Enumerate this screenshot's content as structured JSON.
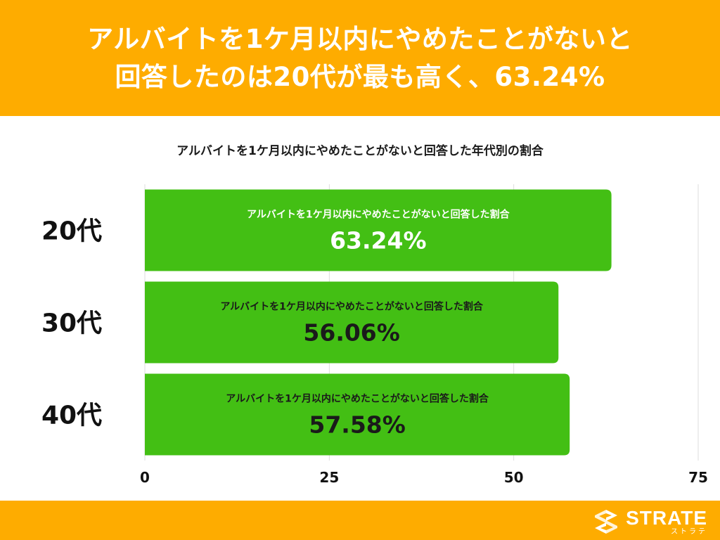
{
  "header": {
    "line1": "アルバイトを1ケ月以内にやめたことがないと",
    "line2": "回答したのは20代が最も高く、63.24%"
  },
  "colors": {
    "brand": "#FEAC00",
    "bar": "#43BF14",
    "grid": "#DDDDDD"
  },
  "footer": {
    "logo_icon": "strate-s-logo-icon",
    "logo_text": "STRATE",
    "logo_kana": "ストラテ"
  },
  "chart_data": {
    "type": "bar",
    "orientation": "horizontal",
    "title": "アルバイトを1ケ月以内にやめたことがないと回答した年代別の割合",
    "categories": [
      "20代",
      "30代",
      "40代"
    ],
    "series": [
      {
        "name": "アルバイトを1ケ月以内にやめたことがないと回答した割合",
        "values": [
          63.24,
          56.06,
          57.58
        ],
        "labels": [
          "63.24%",
          "56.06%",
          "57.58%"
        ]
      }
    ],
    "xlim": [
      0,
      75
    ],
    "xticks": [
      0,
      25,
      50,
      75
    ],
    "grid": true,
    "legend": "none"
  }
}
